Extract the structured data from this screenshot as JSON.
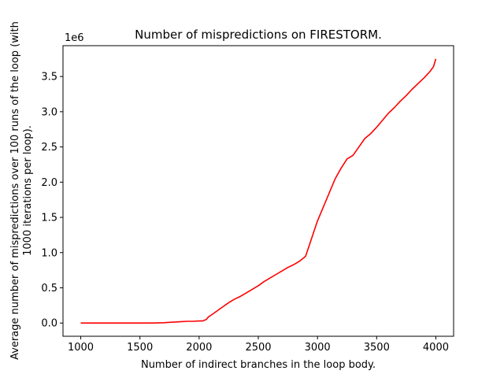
{
  "chart_data": {
    "type": "line",
    "title": "Number of mispredictions on FIRESTORM.",
    "xlabel": "Number of indirect branches in the loop body.",
    "ylabel_lines": [
      "Average number of mispredictions over 100 runs of the loop (with",
      "1000 iterations per loop)."
    ],
    "y_offset_label": "1e6",
    "xlim": [
      850,
      4150
    ],
    "ylim": [
      -187500,
      3937500
    ],
    "y_scale": 1000000,
    "x_ticks": [
      1000,
      1500,
      2000,
      2500,
      3000,
      3500,
      4000
    ],
    "x_tick_labels": [
      "1000",
      "1500",
      "2000",
      "2500",
      "3000",
      "3500",
      "4000"
    ],
    "y_ticks": [
      0,
      500000,
      1000000,
      1500000,
      2000000,
      2500000,
      3000000,
      3500000
    ],
    "y_tick_labels": [
      "0.0",
      "0.5",
      "1.0",
      "1.5",
      "2.0",
      "2.5",
      "3.0",
      "3.5"
    ],
    "grid": false,
    "series": [
      {
        "color": "#ff0000",
        "x": [
          1000,
          1100,
          1200,
          1300,
          1400,
          1500,
          1600,
          1700,
          1750,
          1800,
          1850,
          1900,
          1950,
          2000,
          2030,
          2060,
          2080,
          2100,
          2150,
          2200,
          2250,
          2300,
          2350,
          2400,
          2450,
          2500,
          2550,
          2600,
          2650,
          2700,
          2750,
          2800,
          2850,
          2880,
          2900,
          2930,
          2960,
          3000,
          3050,
          3100,
          3150,
          3200,
          3250,
          3300,
          3350,
          3400,
          3450,
          3500,
          3550,
          3600,
          3650,
          3700,
          3750,
          3800,
          3850,
          3900,
          3950,
          3980,
          4000
        ],
        "y": [
          0,
          0,
          0,
          0,
          0,
          0,
          0,
          5000,
          10000,
          15000,
          20000,
          25000,
          25000,
          30000,
          30000,
          50000,
          90000,
          110000,
          170000,
          230000,
          290000,
          340000,
          380000,
          430000,
          480000,
          530000,
          590000,
          640000,
          690000,
          740000,
          790000,
          830000,
          880000,
          920000,
          950000,
          1100000,
          1250000,
          1450000,
          1650000,
          1850000,
          2050000,
          2200000,
          2330000,
          2380000,
          2500000,
          2620000,
          2690000,
          2780000,
          2880000,
          2980000,
          3060000,
          3150000,
          3230000,
          3320000,
          3400000,
          3480000,
          3570000,
          3640000,
          3750000
        ]
      }
    ]
  }
}
